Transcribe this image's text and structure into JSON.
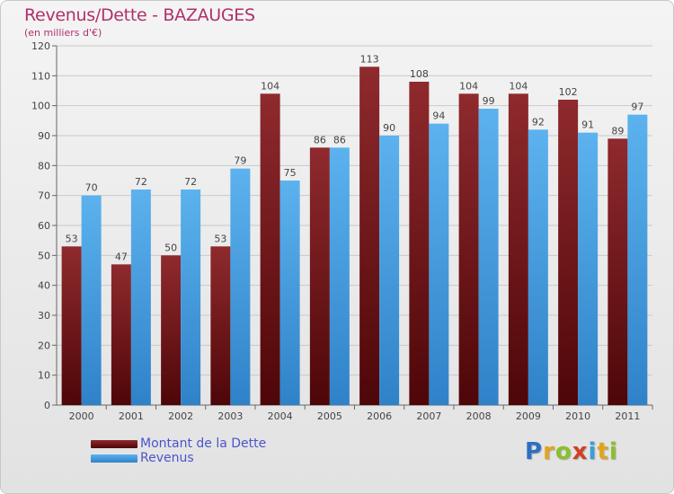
{
  "title": "Revenus/Dette - BAZAUGES",
  "subtitle": "(en milliers d'€)",
  "legend": [
    {
      "label": "Montant de la Dette",
      "color": "#7a1418"
    },
    {
      "label": "Revenus",
      "color": "#3f9be0"
    }
  ],
  "logo": {
    "text": "Proxiti",
    "colors": [
      "#2d6fc4",
      "#e0a51e",
      "#8bbf2a",
      "#d23f22",
      "#3c9ed6",
      "#e0a51e",
      "#8bbf2a"
    ]
  },
  "chart_data": {
    "type": "bar",
    "categories": [
      "2000",
      "2001",
      "2002",
      "2003",
      "2004",
      "2005",
      "2006",
      "2007",
      "2008",
      "2009",
      "2010",
      "2011"
    ],
    "series": [
      {
        "name": "Montant de la Dette",
        "color": "#7a1418",
        "values": [
          53,
          47,
          50,
          53,
          104,
          86,
          113,
          108,
          104,
          104,
          102,
          89
        ]
      },
      {
        "name": "Revenus",
        "color": "#3f9be0",
        "values": [
          70,
          72,
          72,
          79,
          75,
          86,
          90,
          94,
          99,
          92,
          91,
          97
        ]
      }
    ],
    "ylim": [
      0,
      120
    ],
    "yticks": [
      0,
      10,
      20,
      30,
      40,
      50,
      60,
      70,
      80,
      90,
      100,
      110,
      120
    ],
    "grid": true,
    "legend_position": "bottom-left"
  }
}
